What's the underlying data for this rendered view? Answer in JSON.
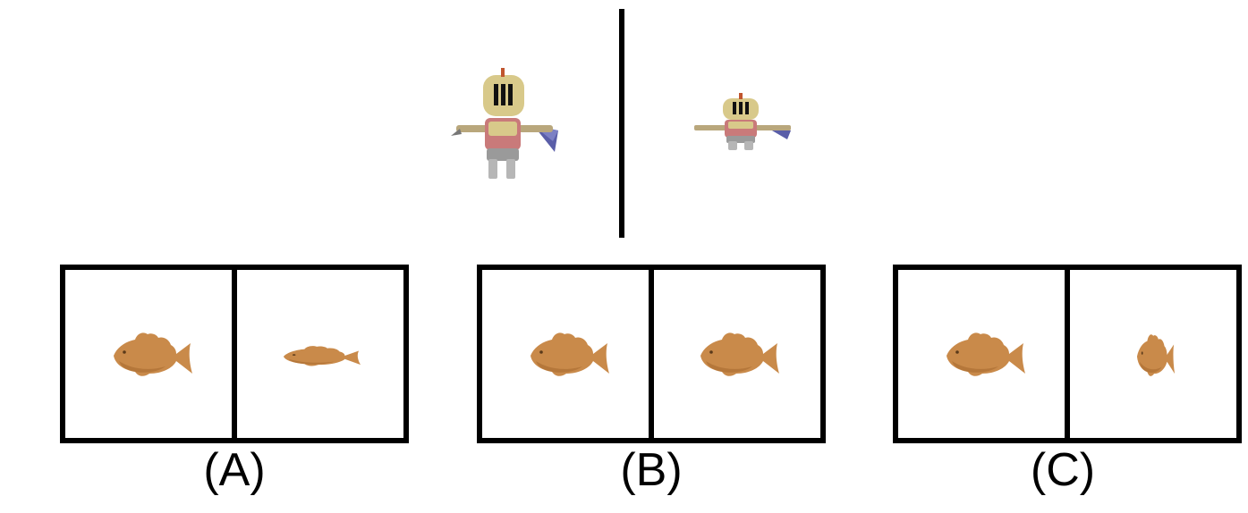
{
  "reference": {
    "left": {
      "image": "knight-character",
      "scale": "large"
    },
    "right": {
      "image": "knight-character",
      "scale": "small-squashed"
    }
  },
  "options": [
    {
      "label": "(A)",
      "left": "fish",
      "right": "fish-stretched-flat"
    },
    {
      "label": "(B)",
      "left": "fish",
      "right": "fish"
    },
    {
      "label": "(C)",
      "left": "fish",
      "right": "fish-narrow"
    }
  ],
  "colors": {
    "fish": "#c98a4a",
    "fish_shadow": "#a86a30",
    "knight_helmet": "#d8c98a",
    "knight_body": "#c97a7a"
  }
}
